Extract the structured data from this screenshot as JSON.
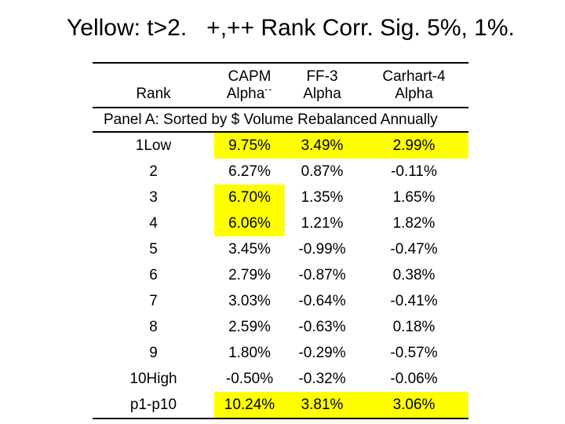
{
  "title": "Yellow: t>2.   +,++ Rank Corr. Sig. 5%, 1%.",
  "colors": {
    "highlight": "#ffff00",
    "text": "#000000",
    "background": "#ffffff"
  },
  "table": {
    "header": {
      "rank": "Rank",
      "capm_line1": "CAPM",
      "capm_line2": "Alpha",
      "capm_superscript": "--",
      "ff3_line1": "FF-3",
      "ff3_line2": "Alpha",
      "carhart_line1": "Carhart-4",
      "carhart_line2": "Alpha"
    },
    "panel_label": "Panel A: Sorted by $ Volume Rebalanced Annually",
    "rows": [
      {
        "rank": "1Low",
        "values": [
          "9.75%",
          "3.49%",
          "2.99%"
        ],
        "highlight": [
          true,
          true,
          true
        ]
      },
      {
        "rank": "2",
        "values": [
          "6.27%",
          "0.87%",
          "-0.11%"
        ],
        "highlight": [
          false,
          false,
          false
        ]
      },
      {
        "rank": "3",
        "values": [
          "6.70%",
          "1.35%",
          "1.65%"
        ],
        "highlight": [
          true,
          false,
          false
        ]
      },
      {
        "rank": "4",
        "values": [
          "6.06%",
          "1.21%",
          "1.82%"
        ],
        "highlight": [
          true,
          false,
          false
        ]
      },
      {
        "rank": "5",
        "values": [
          "3.45%",
          "-0.99%",
          "-0.47%"
        ],
        "highlight": [
          false,
          false,
          false
        ]
      },
      {
        "rank": "6",
        "values": [
          "2.79%",
          "-0.87%",
          "0.38%"
        ],
        "highlight": [
          false,
          false,
          false
        ]
      },
      {
        "rank": "7",
        "values": [
          "3.03%",
          "-0.64%",
          "-0.41%"
        ],
        "highlight": [
          false,
          false,
          false
        ]
      },
      {
        "rank": "8",
        "values": [
          "2.59%",
          "-0.63%",
          "0.18%"
        ],
        "highlight": [
          false,
          false,
          false
        ]
      },
      {
        "rank": "9",
        "values": [
          "1.80%",
          "-0.29%",
          "-0.57%"
        ],
        "highlight": [
          false,
          false,
          false
        ]
      },
      {
        "rank": "10High",
        "values": [
          "-0.50%",
          "-0.32%",
          "-0.06%"
        ],
        "highlight": [
          false,
          false,
          false
        ]
      },
      {
        "rank": "p1-p10",
        "values": [
          "10.24%",
          "3.81%",
          "3.06%"
        ],
        "highlight": [
          true,
          true,
          true
        ]
      }
    ]
  }
}
